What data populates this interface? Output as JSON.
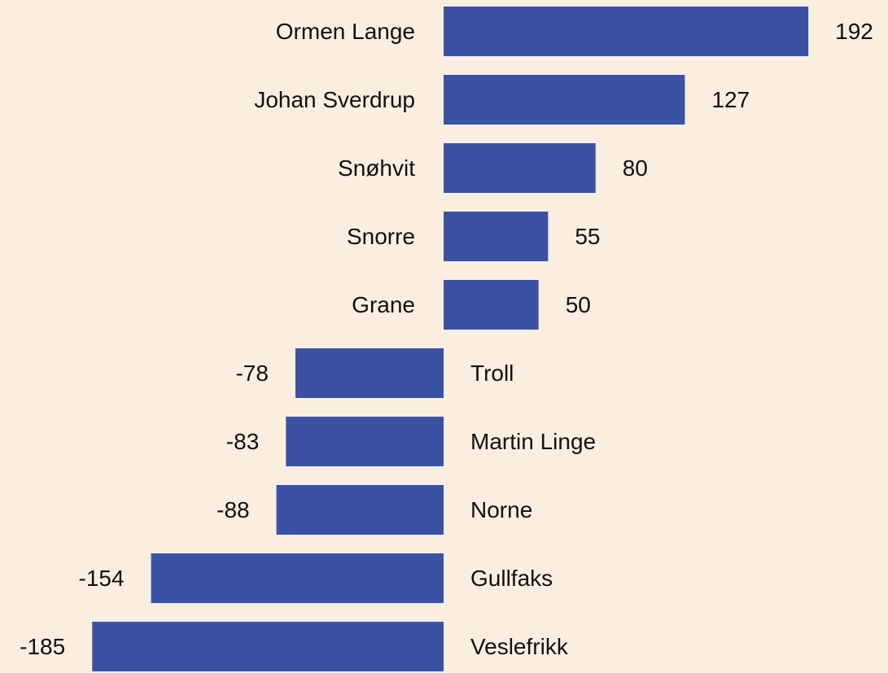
{
  "chart_data": {
    "type": "bar",
    "orientation": "horizontal",
    "categories": [
      "Ormen Lange",
      "Johan Sverdrup",
      "Snøhvit",
      "Snorre",
      "Grane",
      "Troll",
      "Martin Linge",
      "Norne",
      "Gullfaks",
      "Veslefrikk"
    ],
    "values": [
      192,
      127,
      80,
      55,
      50,
      -78,
      -83,
      -88,
      -154,
      -185
    ],
    "color": "#3b52a4"
  }
}
